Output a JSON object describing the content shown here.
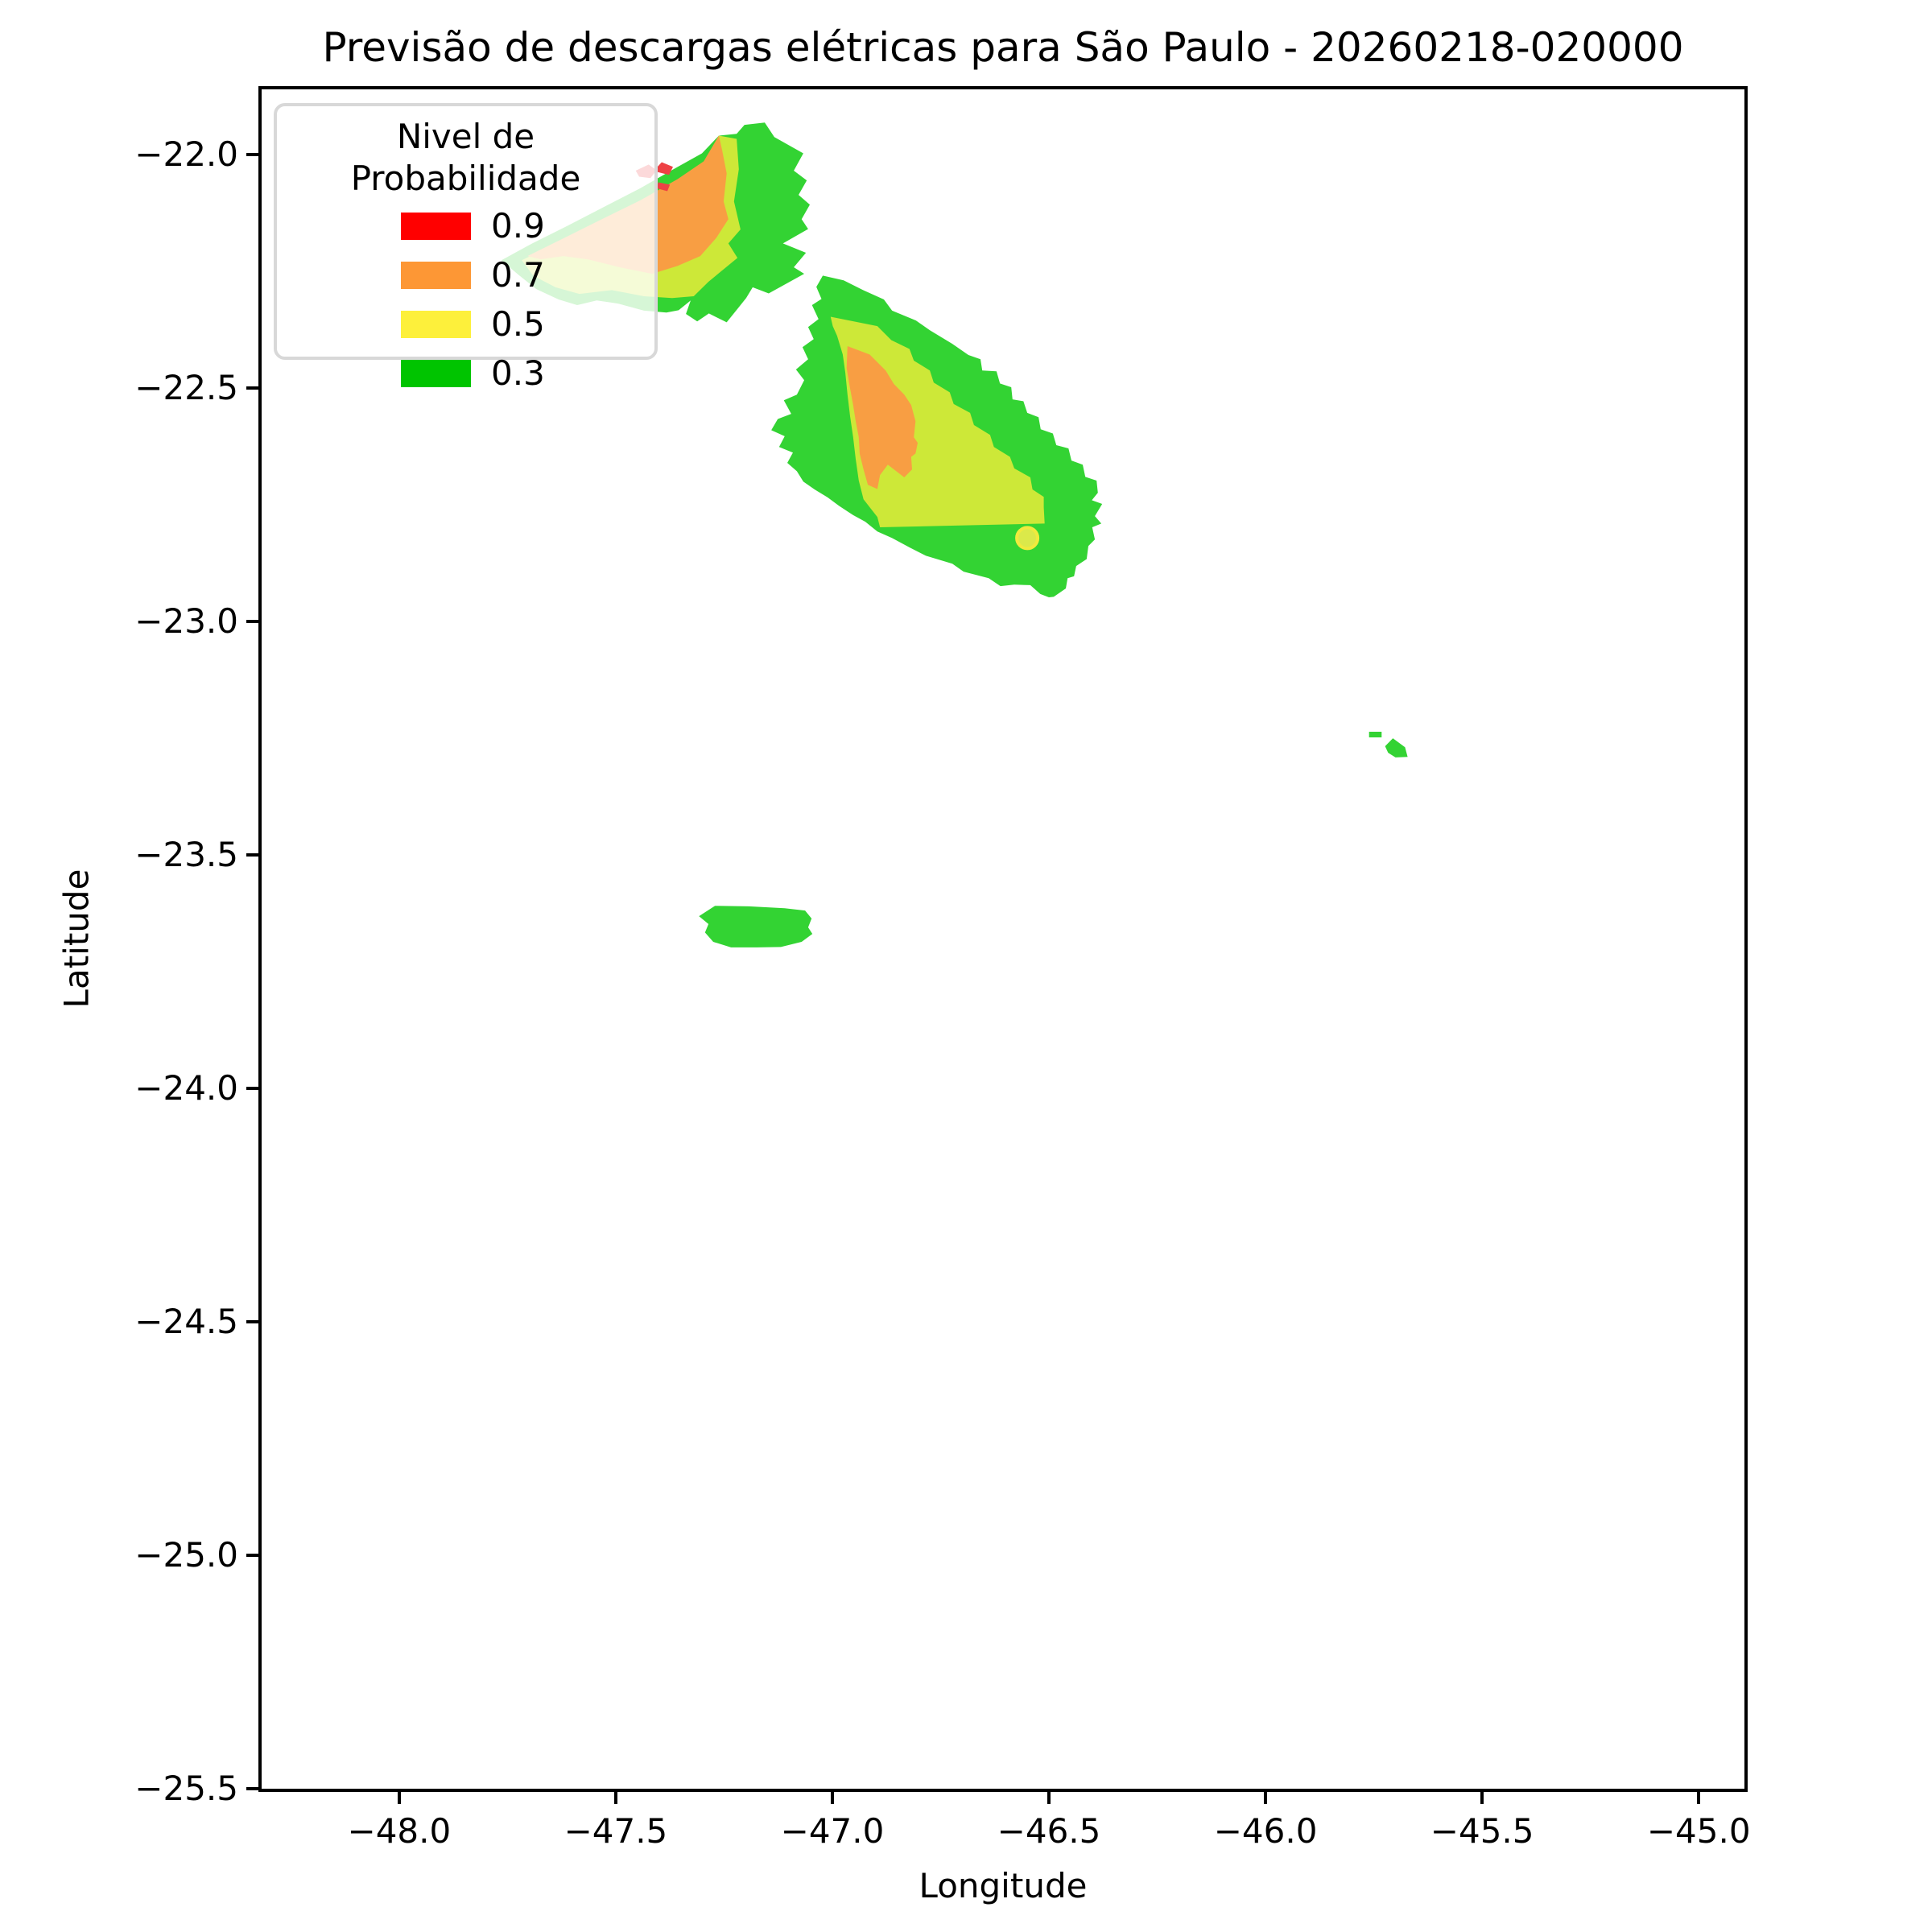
{
  "title": "Previsão de descargas elétricas para São Paulo - 20260218-020000",
  "axes": {
    "xlabel": "Longitude",
    "ylabel": "Latitude",
    "xlim": [
      -48.325,
      -44.887
    ],
    "ylim": [
      -25.507,
      -21.853
    ],
    "xticks": {
      "values": [
        -48.0,
        -47.5,
        -47.0,
        -46.5,
        -46.0,
        -45.5,
        -45.0
      ],
      "labels": [
        "−48.0",
        "−47.5",
        "−47.0",
        "−46.5",
        "−46.0",
        "−45.5",
        "−45.0"
      ]
    },
    "yticks": {
      "values": [
        -22.0,
        -22.5,
        -23.0,
        -23.5,
        -24.0,
        -24.5,
        -25.0,
        -25.5
      ],
      "labels": [
        "−22.0",
        "−22.5",
        "−23.0",
        "−23.5",
        "−24.0",
        "−24.5",
        "−25.0",
        "−25.5"
      ]
    }
  },
  "legend": {
    "title": "Nivel de Probabilidade",
    "items": [
      {
        "label": "0.9",
        "color": "#ff0000"
      },
      {
        "label": "0.7",
        "color": "#fd9735"
      },
      {
        "label": "0.5",
        "color": "#fdf03b"
      },
      {
        "label": "0.3",
        "color": "#00c400"
      }
    ]
  },
  "chart_data": {
    "type": "filled_contour_map",
    "probability_levels": [
      0.3,
      0.5,
      0.7,
      0.9
    ],
    "level_fill_colors": {
      "0.3": "#33d333",
      "0.5": "#cde838",
      "0.7": "#f89e43",
      "0.9": "#ee4145"
    },
    "regions": [
      {
        "id": "northwest-cell-p03",
        "level": 0.3,
        "fill": "#33d333",
        "points": [
          [
            -47.764,
            -22.226
          ],
          [
            -47.695,
            -22.191
          ],
          [
            -47.611,
            -22.152
          ],
          [
            -47.528,
            -22.112
          ],
          [
            -47.444,
            -22.072
          ],
          [
            -47.361,
            -22.028
          ],
          [
            -47.301,
            -21.997
          ],
          [
            -47.262,
            -21.959
          ],
          [
            -47.221,
            -21.955
          ],
          [
            -47.203,
            -21.936
          ],
          [
            -47.156,
            -21.931
          ],
          [
            -47.134,
            -21.962
          ],
          [
            -47.067,
            -21.997
          ],
          [
            -47.089,
            -22.034
          ],
          [
            -47.059,
            -22.055
          ],
          [
            -47.078,
            -22.086
          ],
          [
            -47.052,
            -22.107
          ],
          [
            -47.071,
            -22.138
          ],
          [
            -47.056,
            -22.159
          ],
          [
            -47.114,
            -22.19
          ],
          [
            -47.061,
            -22.21
          ],
          [
            -47.089,
            -22.241
          ],
          [
            -47.065,
            -22.255
          ],
          [
            -47.147,
            -22.297
          ],
          [
            -47.184,
            -22.284
          ],
          [
            -47.199,
            -22.307
          ],
          [
            -47.244,
            -22.359
          ],
          [
            -47.285,
            -22.34
          ],
          [
            -47.312,
            -22.357
          ],
          [
            -47.338,
            -22.341
          ],
          [
            -47.327,
            -22.312
          ],
          [
            -47.355,
            -22.333
          ],
          [
            -47.383,
            -22.338
          ],
          [
            -47.435,
            -22.334
          ],
          [
            -47.494,
            -22.319
          ],
          [
            -47.544,
            -22.312
          ],
          [
            -47.589,
            -22.322
          ],
          [
            -47.632,
            -22.31
          ],
          [
            -47.683,
            -22.288
          ],
          [
            -47.725,
            -22.257
          ]
        ]
      },
      {
        "id": "northwest-cell-p05",
        "level": 0.5,
        "fill": "#cde838",
        "points": [
          [
            -47.717,
            -22.226
          ],
          [
            -47.639,
            -22.191
          ],
          [
            -47.546,
            -22.155
          ],
          [
            -47.453,
            -22.114
          ],
          [
            -47.364,
            -22.069
          ],
          [
            -47.301,
            -22.022
          ],
          [
            -47.262,
            -21.959
          ],
          [
            -47.221,
            -21.966
          ],
          [
            -47.216,
            -22.031
          ],
          [
            -47.227,
            -22.1
          ],
          [
            -47.212,
            -22.16
          ],
          [
            -47.24,
            -22.19
          ],
          [
            -47.219,
            -22.221
          ],
          [
            -47.286,
            -22.272
          ],
          [
            -47.32,
            -22.303
          ],
          [
            -47.37,
            -22.307
          ],
          [
            -47.435,
            -22.303
          ],
          [
            -47.509,
            -22.29
          ],
          [
            -47.584,
            -22.298
          ],
          [
            -47.639,
            -22.284
          ],
          [
            -47.691,
            -22.259
          ]
        ]
      },
      {
        "id": "northwest-cell-p07",
        "level": 0.7,
        "fill": "#f89e43",
        "points": [
          [
            -47.704,
            -22.217
          ],
          [
            -47.621,
            -22.179
          ],
          [
            -47.532,
            -22.138
          ],
          [
            -47.442,
            -22.097
          ],
          [
            -47.357,
            -22.052
          ],
          [
            -47.297,
            -22.014
          ],
          [
            -47.262,
            -21.959
          ],
          [
            -47.255,
            -21.988
          ],
          [
            -47.244,
            -22.04
          ],
          [
            -47.251,
            -22.1
          ],
          [
            -47.24,
            -22.138
          ],
          [
            -47.268,
            -22.178
          ],
          [
            -47.305,
            -22.217
          ],
          [
            -47.357,
            -22.238
          ],
          [
            -47.416,
            -22.255
          ],
          [
            -47.491,
            -22.241
          ],
          [
            -47.565,
            -22.224
          ],
          [
            -47.621,
            -22.217
          ],
          [
            -47.673,
            -22.224
          ]
        ]
      },
      {
        "id": "northwest-cell-p09-a",
        "level": 0.9,
        "fill": "#ee4145",
        "points": [
          [
            -47.454,
            -22.034
          ],
          [
            -47.424,
            -22.021
          ],
          [
            -47.409,
            -22.031
          ],
          [
            -47.394,
            -22.016
          ],
          [
            -47.368,
            -22.026
          ],
          [
            -47.377,
            -22.043
          ],
          [
            -47.408,
            -22.036
          ],
          [
            -47.42,
            -22.05
          ],
          [
            -47.446,
            -22.047
          ]
        ]
      },
      {
        "id": "northwest-cell-p09-b",
        "level": 0.9,
        "fill": "#ee4145",
        "points": [
          [
            -47.402,
            -22.059
          ],
          [
            -47.375,
            -22.064
          ],
          [
            -47.381,
            -22.078
          ],
          [
            -47.405,
            -22.072
          ]
        ]
      },
      {
        "id": "central-cell-p03",
        "level": 0.3,
        "fill": "#33d333",
        "points": [
          [
            -47.022,
            -22.259
          ],
          [
            -46.974,
            -22.269
          ],
          [
            -46.929,
            -22.29
          ],
          [
            -46.881,
            -22.31
          ],
          [
            -46.862,
            -22.334
          ],
          [
            -46.807,
            -22.355
          ],
          [
            -46.775,
            -22.376
          ],
          [
            -46.723,
            -22.405
          ],
          [
            -46.686,
            -22.429
          ],
          [
            -46.658,
            -22.438
          ],
          [
            -46.654,
            -22.462
          ],
          [
            -46.621,
            -22.464
          ],
          [
            -46.613,
            -22.49
          ],
          [
            -46.587,
            -22.498
          ],
          [
            -46.584,
            -22.524
          ],
          [
            -46.559,
            -22.528
          ],
          [
            -46.55,
            -22.553
          ],
          [
            -46.524,
            -22.562
          ],
          [
            -46.519,
            -22.588
          ],
          [
            -46.491,
            -22.597
          ],
          [
            -46.483,
            -22.622
          ],
          [
            -46.455,
            -22.629
          ],
          [
            -46.448,
            -22.655
          ],
          [
            -46.422,
            -22.664
          ],
          [
            -46.416,
            -22.69
          ],
          [
            -46.39,
            -22.698
          ],
          [
            -46.387,
            -22.724
          ],
          [
            -46.401,
            -22.74
          ],
          [
            -46.377,
            -22.748
          ],
          [
            -46.394,
            -22.774
          ],
          [
            -46.379,
            -22.79
          ],
          [
            -46.4,
            -22.798
          ],
          [
            -46.394,
            -22.824
          ],
          [
            -46.409,
            -22.838
          ],
          [
            -46.413,
            -22.866
          ],
          [
            -46.437,
            -22.881
          ],
          [
            -46.442,
            -22.903
          ],
          [
            -46.457,
            -22.907
          ],
          [
            -46.461,
            -22.929
          ],
          [
            -46.489,
            -22.947
          ],
          [
            -46.5,
            -22.948
          ],
          [
            -46.52,
            -22.941
          ],
          [
            -46.543,
            -22.922
          ],
          [
            -46.58,
            -22.921
          ],
          [
            -46.612,
            -22.924
          ],
          [
            -46.639,
            -22.907
          ],
          [
            -46.697,
            -22.893
          ],
          [
            -46.723,
            -22.876
          ],
          [
            -46.784,
            -22.859
          ],
          [
            -46.822,
            -22.841
          ],
          [
            -46.862,
            -22.821
          ],
          [
            -46.896,
            -22.807
          ],
          [
            -46.924,
            -22.786
          ],
          [
            -46.952,
            -22.772
          ],
          [
            -46.985,
            -22.752
          ],
          [
            -47.011,
            -22.734
          ],
          [
            -47.041,
            -22.717
          ],
          [
            -47.067,
            -22.7
          ],
          [
            -47.082,
            -22.678
          ],
          [
            -47.104,
            -22.66
          ],
          [
            -47.091,
            -22.638
          ],
          [
            -47.123,
            -22.626
          ],
          [
            -47.11,
            -22.603
          ],
          [
            -47.141,
            -22.59
          ],
          [
            -47.126,
            -22.566
          ],
          [
            -47.095,
            -22.555
          ],
          [
            -47.112,
            -22.526
          ],
          [
            -47.082,
            -22.514
          ],
          [
            -47.065,
            -22.483
          ],
          [
            -47.084,
            -22.46
          ],
          [
            -47.056,
            -22.438
          ],
          [
            -47.069,
            -22.412
          ],
          [
            -47.043,
            -22.395
          ],
          [
            -47.056,
            -22.369
          ],
          [
            -47.032,
            -22.352
          ],
          [
            -47.047,
            -22.322
          ],
          [
            -47.025,
            -22.309
          ],
          [
            -47.037,
            -22.283
          ]
        ]
      },
      {
        "id": "central-cell-p05",
        "level": 0.5,
        "fill": "#cde838",
        "points": [
          [
            -47.004,
            -22.347
          ],
          [
            -46.896,
            -22.367
          ],
          [
            -46.864,
            -22.397
          ],
          [
            -46.822,
            -22.416
          ],
          [
            -46.812,
            -22.441
          ],
          [
            -46.775,
            -22.462
          ],
          [
            -46.766,
            -22.488
          ],
          [
            -46.729,
            -22.509
          ],
          [
            -46.72,
            -22.534
          ],
          [
            -46.682,
            -22.553
          ],
          [
            -46.673,
            -22.579
          ],
          [
            -46.636,
            -22.6
          ],
          [
            -46.627,
            -22.626
          ],
          [
            -46.59,
            -22.647
          ],
          [
            -46.58,
            -22.672
          ],
          [
            -46.543,
            -22.691
          ],
          [
            -46.538,
            -22.717
          ],
          [
            -46.512,
            -22.733
          ],
          [
            -46.512,
            -22.755
          ],
          [
            -46.51,
            -22.79
          ],
          [
            -46.89,
            -22.798
          ],
          [
            -46.896,
            -22.776
          ],
          [
            -46.928,
            -22.738
          ],
          [
            -46.939,
            -22.698
          ],
          [
            -46.946,
            -22.652
          ],
          [
            -46.952,
            -22.605
          ],
          [
            -46.959,
            -22.56
          ],
          [
            -46.965,
            -22.514
          ],
          [
            -46.97,
            -22.467
          ],
          [
            -46.976,
            -22.428
          ],
          [
            -46.989,
            -22.388
          ],
          [
            -46.999,
            -22.367
          ]
        ]
      },
      {
        "id": "central-cell-p07",
        "level": 0.7,
        "fill": "#f89e43",
        "points": [
          [
            -46.965,
            -22.41
          ],
          [
            -46.914,
            -22.428
          ],
          [
            -46.877,
            -22.462
          ],
          [
            -46.858,
            -22.491
          ],
          [
            -46.834,
            -22.514
          ],
          [
            -46.818,
            -22.536
          ],
          [
            -46.808,
            -22.571
          ],
          [
            -46.812,
            -22.605
          ],
          [
            -46.803,
            -22.617
          ],
          [
            -46.808,
            -22.64
          ],
          [
            -46.818,
            -22.647
          ],
          [
            -46.816,
            -22.674
          ],
          [
            -46.834,
            -22.691
          ],
          [
            -46.872,
            -22.664
          ],
          [
            -46.89,
            -22.686
          ],
          [
            -46.896,
            -22.716
          ],
          [
            -46.918,
            -22.707
          ],
          [
            -46.928,
            -22.674
          ],
          [
            -46.937,
            -22.64
          ],
          [
            -46.939,
            -22.605
          ],
          [
            -46.946,
            -22.571
          ],
          [
            -46.952,
            -22.536
          ],
          [
            -46.961,
            -22.491
          ],
          [
            -46.967,
            -22.457
          ]
        ]
      },
      {
        "id": "southwest-cell-p03",
        "level": 0.3,
        "fill": "#33d333",
        "points": [
          [
            -47.308,
            -23.631
          ],
          [
            -47.271,
            -23.609
          ],
          [
            -47.193,
            -23.61
          ],
          [
            -47.11,
            -23.614
          ],
          [
            -47.063,
            -23.619
          ],
          [
            -47.048,
            -23.636
          ],
          [
            -47.056,
            -23.655
          ],
          [
            -47.046,
            -23.669
          ],
          [
            -47.071,
            -23.686
          ],
          [
            -47.119,
            -23.697
          ],
          [
            -47.175,
            -23.698
          ],
          [
            -47.234,
            -23.698
          ],
          [
            -47.275,
            -23.686
          ],
          [
            -47.294,
            -23.666
          ],
          [
            -47.286,
            -23.648
          ]
        ]
      },
      {
        "id": "east-cell-p03-bar",
        "level": 0.3,
        "fill": "#33d333",
        "points": [
          [
            -45.761,
            -23.236
          ],
          [
            -45.732,
            -23.236
          ],
          [
            -45.732,
            -23.248
          ],
          [
            -45.761,
            -23.248
          ]
        ]
      },
      {
        "id": "east-cell-p03",
        "level": 0.3,
        "fill": "#33d333",
        "points": [
          [
            -45.724,
            -23.267
          ],
          [
            -45.706,
            -23.25
          ],
          [
            -45.678,
            -23.269
          ],
          [
            -45.672,
            -23.29
          ],
          [
            -45.7,
            -23.291
          ],
          [
            -45.717,
            -23.281
          ]
        ]
      }
    ],
    "marker": {
      "id": "highlight-point",
      "lon": -46.55,
      "lat": -22.821,
      "radius_px": 13,
      "fill": "#dbe94a",
      "stroke": "#f1ea3d"
    }
  }
}
